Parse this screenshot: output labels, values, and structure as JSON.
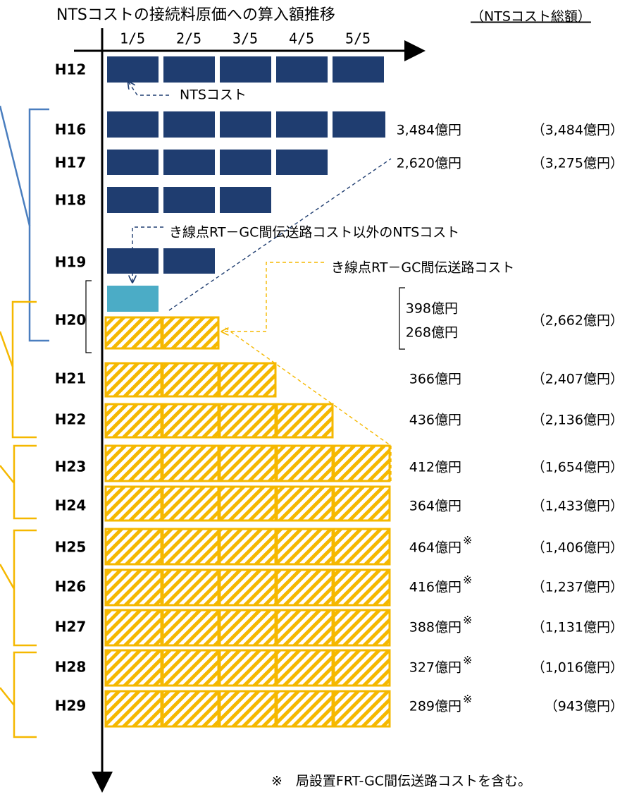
{
  "title": "NTSコストの接続料原価への算入額推移",
  "title_note": "（NTSコスト総額）",
  "column_labels": [
    "1/5",
    "2/5",
    "3/5",
    "4/5",
    "5/5"
  ],
  "annotations": {
    "nts": "NTSコスト",
    "other": "き線点RT－GC間伝送路コスト以外のNTSコスト",
    "rtgc": "き線点RT－GC間伝送路コスト"
  },
  "rows": [
    {
      "label": "H12"
    },
    {
      "label": "H16",
      "value": "3,484億円",
      "total": "（3,484億円）"
    },
    {
      "label": "H17",
      "value": "2,620億円",
      "total": "（3,275億円）"
    },
    {
      "label": "H18"
    },
    {
      "label": "H19"
    },
    {
      "label": "H20",
      "value": "398億円",
      "value2": "268億円",
      "total": "（2,662億円）"
    },
    {
      "label": "H21",
      "value": "366億円",
      "total": "（2,407億円）"
    },
    {
      "label": "H22",
      "value": "436億円",
      "total": "（2,136億円）"
    },
    {
      "label": "H23",
      "value": "412億円",
      "total": "（1,654億円）"
    },
    {
      "label": "H24",
      "value": "364億円",
      "total": "（1,433億円）"
    },
    {
      "label": "H25",
      "value": "464億円",
      "mark": "※",
      "total": "（1,406億円）"
    },
    {
      "label": "H26",
      "value": "416億円",
      "mark": "※",
      "total": "（1,237億円）"
    },
    {
      "label": "H27",
      "value": "388億円",
      "mark": "※",
      "total": "（1,131億円）"
    },
    {
      "label": "H28",
      "value": "327億円",
      "mark": "※",
      "total": "（1,016億円）"
    },
    {
      "label": "H29",
      "value": "289億円",
      "mark": "※",
      "total": "（943億円）"
    }
  ],
  "footnote": "※　局設置FRT-GC間伝送路コストを含む。"
}
